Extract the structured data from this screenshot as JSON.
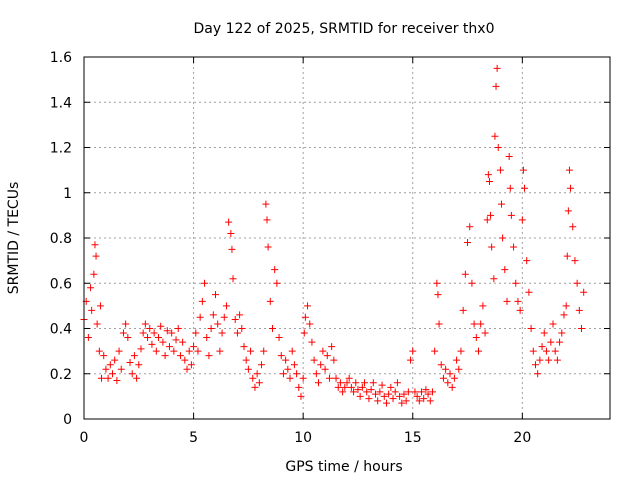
{
  "chart_data": {
    "type": "scatter",
    "title": "Day 122 of 2025, SRMTID for receiver thx0",
    "xlabel": "GPS time / hours",
    "ylabel": "SRMTID / TECUs",
    "xlim": [
      0,
      24
    ],
    "ylim": [
      0,
      1.6
    ],
    "xticks": [
      0,
      5,
      10,
      15,
      20
    ],
    "xtick_labels": [
      "0",
      "5",
      "10",
      "15",
      "20"
    ],
    "yticks": [
      0,
      0.2,
      0.4,
      0.6,
      0.8,
      1.0,
      1.2,
      1.4,
      1.6
    ],
    "ytick_labels": [
      "0",
      "0.2",
      "0.4",
      "0.6",
      "0.8",
      "1",
      "1.2",
      "1.4",
      "1.6"
    ],
    "grid": true,
    "marker": "plus",
    "color": "#ff0000",
    "series": [
      {
        "name": "SRMTID thx0",
        "points": [
          [
            0.0,
            0.44
          ],
          [
            0.1,
            0.52
          ],
          [
            0.2,
            0.36
          ],
          [
            0.3,
            0.58
          ],
          [
            0.35,
            0.48
          ],
          [
            0.45,
            0.64
          ],
          [
            0.5,
            0.77
          ],
          [
            0.55,
            0.72
          ],
          [
            0.6,
            0.42
          ],
          [
            0.7,
            0.3
          ],
          [
            0.75,
            0.5
          ],
          [
            0.8,
            0.18
          ],
          [
            0.9,
            0.28
          ],
          [
            1.0,
            0.22
          ],
          [
            1.1,
            0.18
          ],
          [
            1.2,
            0.24
          ],
          [
            1.3,
            0.2
          ],
          [
            1.4,
            0.26
          ],
          [
            1.5,
            0.17
          ],
          [
            1.6,
            0.3
          ],
          [
            1.7,
            0.22
          ],
          [
            1.8,
            0.38
          ],
          [
            1.9,
            0.42
          ],
          [
            2.0,
            0.36
          ],
          [
            2.1,
            0.25
          ],
          [
            2.2,
            0.2
          ],
          [
            2.3,
            0.28
          ],
          [
            2.4,
            0.18
          ],
          [
            2.5,
            0.24
          ],
          [
            2.6,
            0.31
          ],
          [
            2.7,
            0.38
          ],
          [
            2.8,
            0.42
          ],
          [
            2.9,
            0.36
          ],
          [
            3.0,
            0.4
          ],
          [
            3.1,
            0.33
          ],
          [
            3.2,
            0.38
          ],
          [
            3.3,
            0.3
          ],
          [
            3.4,
            0.36
          ],
          [
            3.5,
            0.41
          ],
          [
            3.6,
            0.34
          ],
          [
            3.7,
            0.28
          ],
          [
            3.8,
            0.39
          ],
          [
            3.9,
            0.32
          ],
          [
            4.0,
            0.38
          ],
          [
            4.1,
            0.3
          ],
          [
            4.2,
            0.35
          ],
          [
            4.3,
            0.4
          ],
          [
            4.4,
            0.28
          ],
          [
            4.5,
            0.34
          ],
          [
            4.6,
            0.26
          ],
          [
            4.7,
            0.22
          ],
          [
            4.8,
            0.3
          ],
          [
            4.9,
            0.24
          ],
          [
            5.0,
            0.32
          ],
          [
            5.1,
            0.38
          ],
          [
            5.2,
            0.3
          ],
          [
            5.3,
            0.45
          ],
          [
            5.4,
            0.52
          ],
          [
            5.5,
            0.6
          ],
          [
            5.6,
            0.36
          ],
          [
            5.7,
            0.28
          ],
          [
            5.8,
            0.4
          ],
          [
            5.9,
            0.46
          ],
          [
            6.0,
            0.55
          ],
          [
            6.1,
            0.42
          ],
          [
            6.2,
            0.3
          ],
          [
            6.3,
            0.38
          ],
          [
            6.4,
            0.45
          ],
          [
            6.5,
            0.5
          ],
          [
            6.6,
            0.87
          ],
          [
            6.7,
            0.82
          ],
          [
            6.75,
            0.75
          ],
          [
            6.8,
            0.62
          ],
          [
            6.9,
            0.44
          ],
          [
            7.0,
            0.38
          ],
          [
            7.1,
            0.46
          ],
          [
            7.2,
            0.4
          ],
          [
            7.3,
            0.32
          ],
          [
            7.4,
            0.26
          ],
          [
            7.5,
            0.22
          ],
          [
            7.6,
            0.3
          ],
          [
            7.7,
            0.18
          ],
          [
            7.8,
            0.14
          ],
          [
            7.9,
            0.2
          ],
          [
            8.0,
            0.16
          ],
          [
            8.1,
            0.24
          ],
          [
            8.2,
            0.3
          ],
          [
            8.3,
            0.95
          ],
          [
            8.35,
            0.88
          ],
          [
            8.4,
            0.76
          ],
          [
            8.5,
            0.52
          ],
          [
            8.6,
            0.4
          ],
          [
            8.7,
            0.66
          ],
          [
            8.8,
            0.6
          ],
          [
            8.9,
            0.36
          ],
          [
            9.0,
            0.28
          ],
          [
            9.1,
            0.2
          ],
          [
            9.2,
            0.26
          ],
          [
            9.3,
            0.22
          ],
          [
            9.4,
            0.18
          ],
          [
            9.5,
            0.3
          ],
          [
            9.6,
            0.24
          ],
          [
            9.7,
            0.2
          ],
          [
            9.8,
            0.14
          ],
          [
            9.9,
            0.1
          ],
          [
            10.0,
            0.18
          ],
          [
            10.05,
            0.38
          ],
          [
            10.1,
            0.45
          ],
          [
            10.2,
            0.5
          ],
          [
            10.3,
            0.42
          ],
          [
            10.4,
            0.34
          ],
          [
            10.5,
            0.26
          ],
          [
            10.6,
            0.2
          ],
          [
            10.7,
            0.16
          ],
          [
            10.8,
            0.24
          ],
          [
            10.9,
            0.3
          ],
          [
            11.0,
            0.22
          ],
          [
            11.1,
            0.28
          ],
          [
            11.2,
            0.18
          ],
          [
            11.3,
            0.32
          ],
          [
            11.4,
            0.26
          ],
          [
            11.5,
            0.18
          ],
          [
            11.6,
            0.14
          ],
          [
            11.7,
            0.16
          ],
          [
            11.8,
            0.12
          ],
          [
            11.9,
            0.14
          ],
          [
            12.0,
            0.16
          ],
          [
            12.1,
            0.18
          ],
          [
            12.2,
            0.14
          ],
          [
            12.3,
            0.12
          ],
          [
            12.4,
            0.16
          ],
          [
            12.5,
            0.13
          ],
          [
            12.6,
            0.1
          ],
          [
            12.7,
            0.14
          ],
          [
            12.8,
            0.16
          ],
          [
            12.9,
            0.12
          ],
          [
            13.0,
            0.09
          ],
          [
            13.1,
            0.13
          ],
          [
            13.2,
            0.16
          ],
          [
            13.3,
            0.11
          ],
          [
            13.4,
            0.08
          ],
          [
            13.5,
            0.12
          ],
          [
            13.6,
            0.15
          ],
          [
            13.7,
            0.1
          ],
          [
            13.8,
            0.07
          ],
          [
            13.9,
            0.11
          ],
          [
            14.0,
            0.14
          ],
          [
            14.1,
            0.09
          ],
          [
            14.2,
            0.12
          ],
          [
            14.3,
            0.16
          ],
          [
            14.4,
            0.1
          ],
          [
            14.5,
            0.07
          ],
          [
            14.6,
            0.11
          ],
          [
            14.7,
            0.08
          ],
          [
            14.8,
            0.12
          ],
          [
            14.9,
            0.26
          ],
          [
            15.0,
            0.3
          ],
          [
            15.1,
            0.12
          ],
          [
            15.2,
            0.1
          ],
          [
            15.3,
            0.08
          ],
          [
            15.4,
            0.12
          ],
          [
            15.5,
            0.09
          ],
          [
            15.6,
            0.13
          ],
          [
            15.7,
            0.11
          ],
          [
            15.8,
            0.08
          ],
          [
            15.9,
            0.12
          ],
          [
            16.0,
            0.3
          ],
          [
            16.1,
            0.6
          ],
          [
            16.15,
            0.55
          ],
          [
            16.2,
            0.42
          ],
          [
            16.3,
            0.24
          ],
          [
            16.4,
            0.18
          ],
          [
            16.5,
            0.22
          ],
          [
            16.6,
            0.16
          ],
          [
            16.7,
            0.2
          ],
          [
            16.8,
            0.14
          ],
          [
            16.9,
            0.18
          ],
          [
            17.0,
            0.26
          ],
          [
            17.1,
            0.22
          ],
          [
            17.2,
            0.3
          ],
          [
            17.3,
            0.48
          ],
          [
            17.4,
            0.64
          ],
          [
            17.5,
            0.78
          ],
          [
            17.6,
            0.85
          ],
          [
            17.7,
            0.6
          ],
          [
            17.8,
            0.42
          ],
          [
            17.9,
            0.36
          ],
          [
            18.0,
            0.3
          ],
          [
            18.1,
            0.42
          ],
          [
            18.2,
            0.5
          ],
          [
            18.3,
            0.38
          ],
          [
            18.4,
            0.88
          ],
          [
            18.45,
            1.08
          ],
          [
            18.5,
            1.05
          ],
          [
            18.55,
            0.9
          ],
          [
            18.6,
            0.76
          ],
          [
            18.7,
            0.62
          ],
          [
            18.75,
            1.25
          ],
          [
            18.8,
            1.47
          ],
          [
            18.85,
            1.55
          ],
          [
            18.9,
            1.2
          ],
          [
            19.0,
            1.1
          ],
          [
            19.05,
            0.95
          ],
          [
            19.1,
            0.8
          ],
          [
            19.2,
            0.66
          ],
          [
            19.3,
            0.52
          ],
          [
            19.4,
            1.16
          ],
          [
            19.45,
            1.02
          ],
          [
            19.5,
            0.9
          ],
          [
            19.6,
            0.76
          ],
          [
            19.7,
            0.6
          ],
          [
            19.8,
            0.52
          ],
          [
            19.9,
            0.48
          ],
          [
            20.0,
            0.88
          ],
          [
            20.05,
            1.1
          ],
          [
            20.1,
            1.02
          ],
          [
            20.2,
            0.7
          ],
          [
            20.3,
            0.56
          ],
          [
            20.4,
            0.4
          ],
          [
            20.5,
            0.3
          ],
          [
            20.6,
            0.24
          ],
          [
            20.7,
            0.2
          ],
          [
            20.8,
            0.26
          ],
          [
            20.9,
            0.32
          ],
          [
            21.0,
            0.38
          ],
          [
            21.1,
            0.3
          ],
          [
            21.2,
            0.26
          ],
          [
            21.3,
            0.34
          ],
          [
            21.4,
            0.42
          ],
          [
            21.5,
            0.3
          ],
          [
            21.6,
            0.26
          ],
          [
            21.7,
            0.34
          ],
          [
            21.8,
            0.38
          ],
          [
            21.9,
            0.46
          ],
          [
            22.0,
            0.5
          ],
          [
            22.05,
            0.72
          ],
          [
            22.1,
            0.92
          ],
          [
            22.15,
            1.1
          ],
          [
            22.2,
            1.02
          ],
          [
            22.3,
            0.85
          ],
          [
            22.4,
            0.7
          ],
          [
            22.5,
            0.6
          ],
          [
            22.6,
            0.48
          ],
          [
            22.7,
            0.4
          ],
          [
            22.8,
            0.56
          ]
        ]
      }
    ]
  }
}
